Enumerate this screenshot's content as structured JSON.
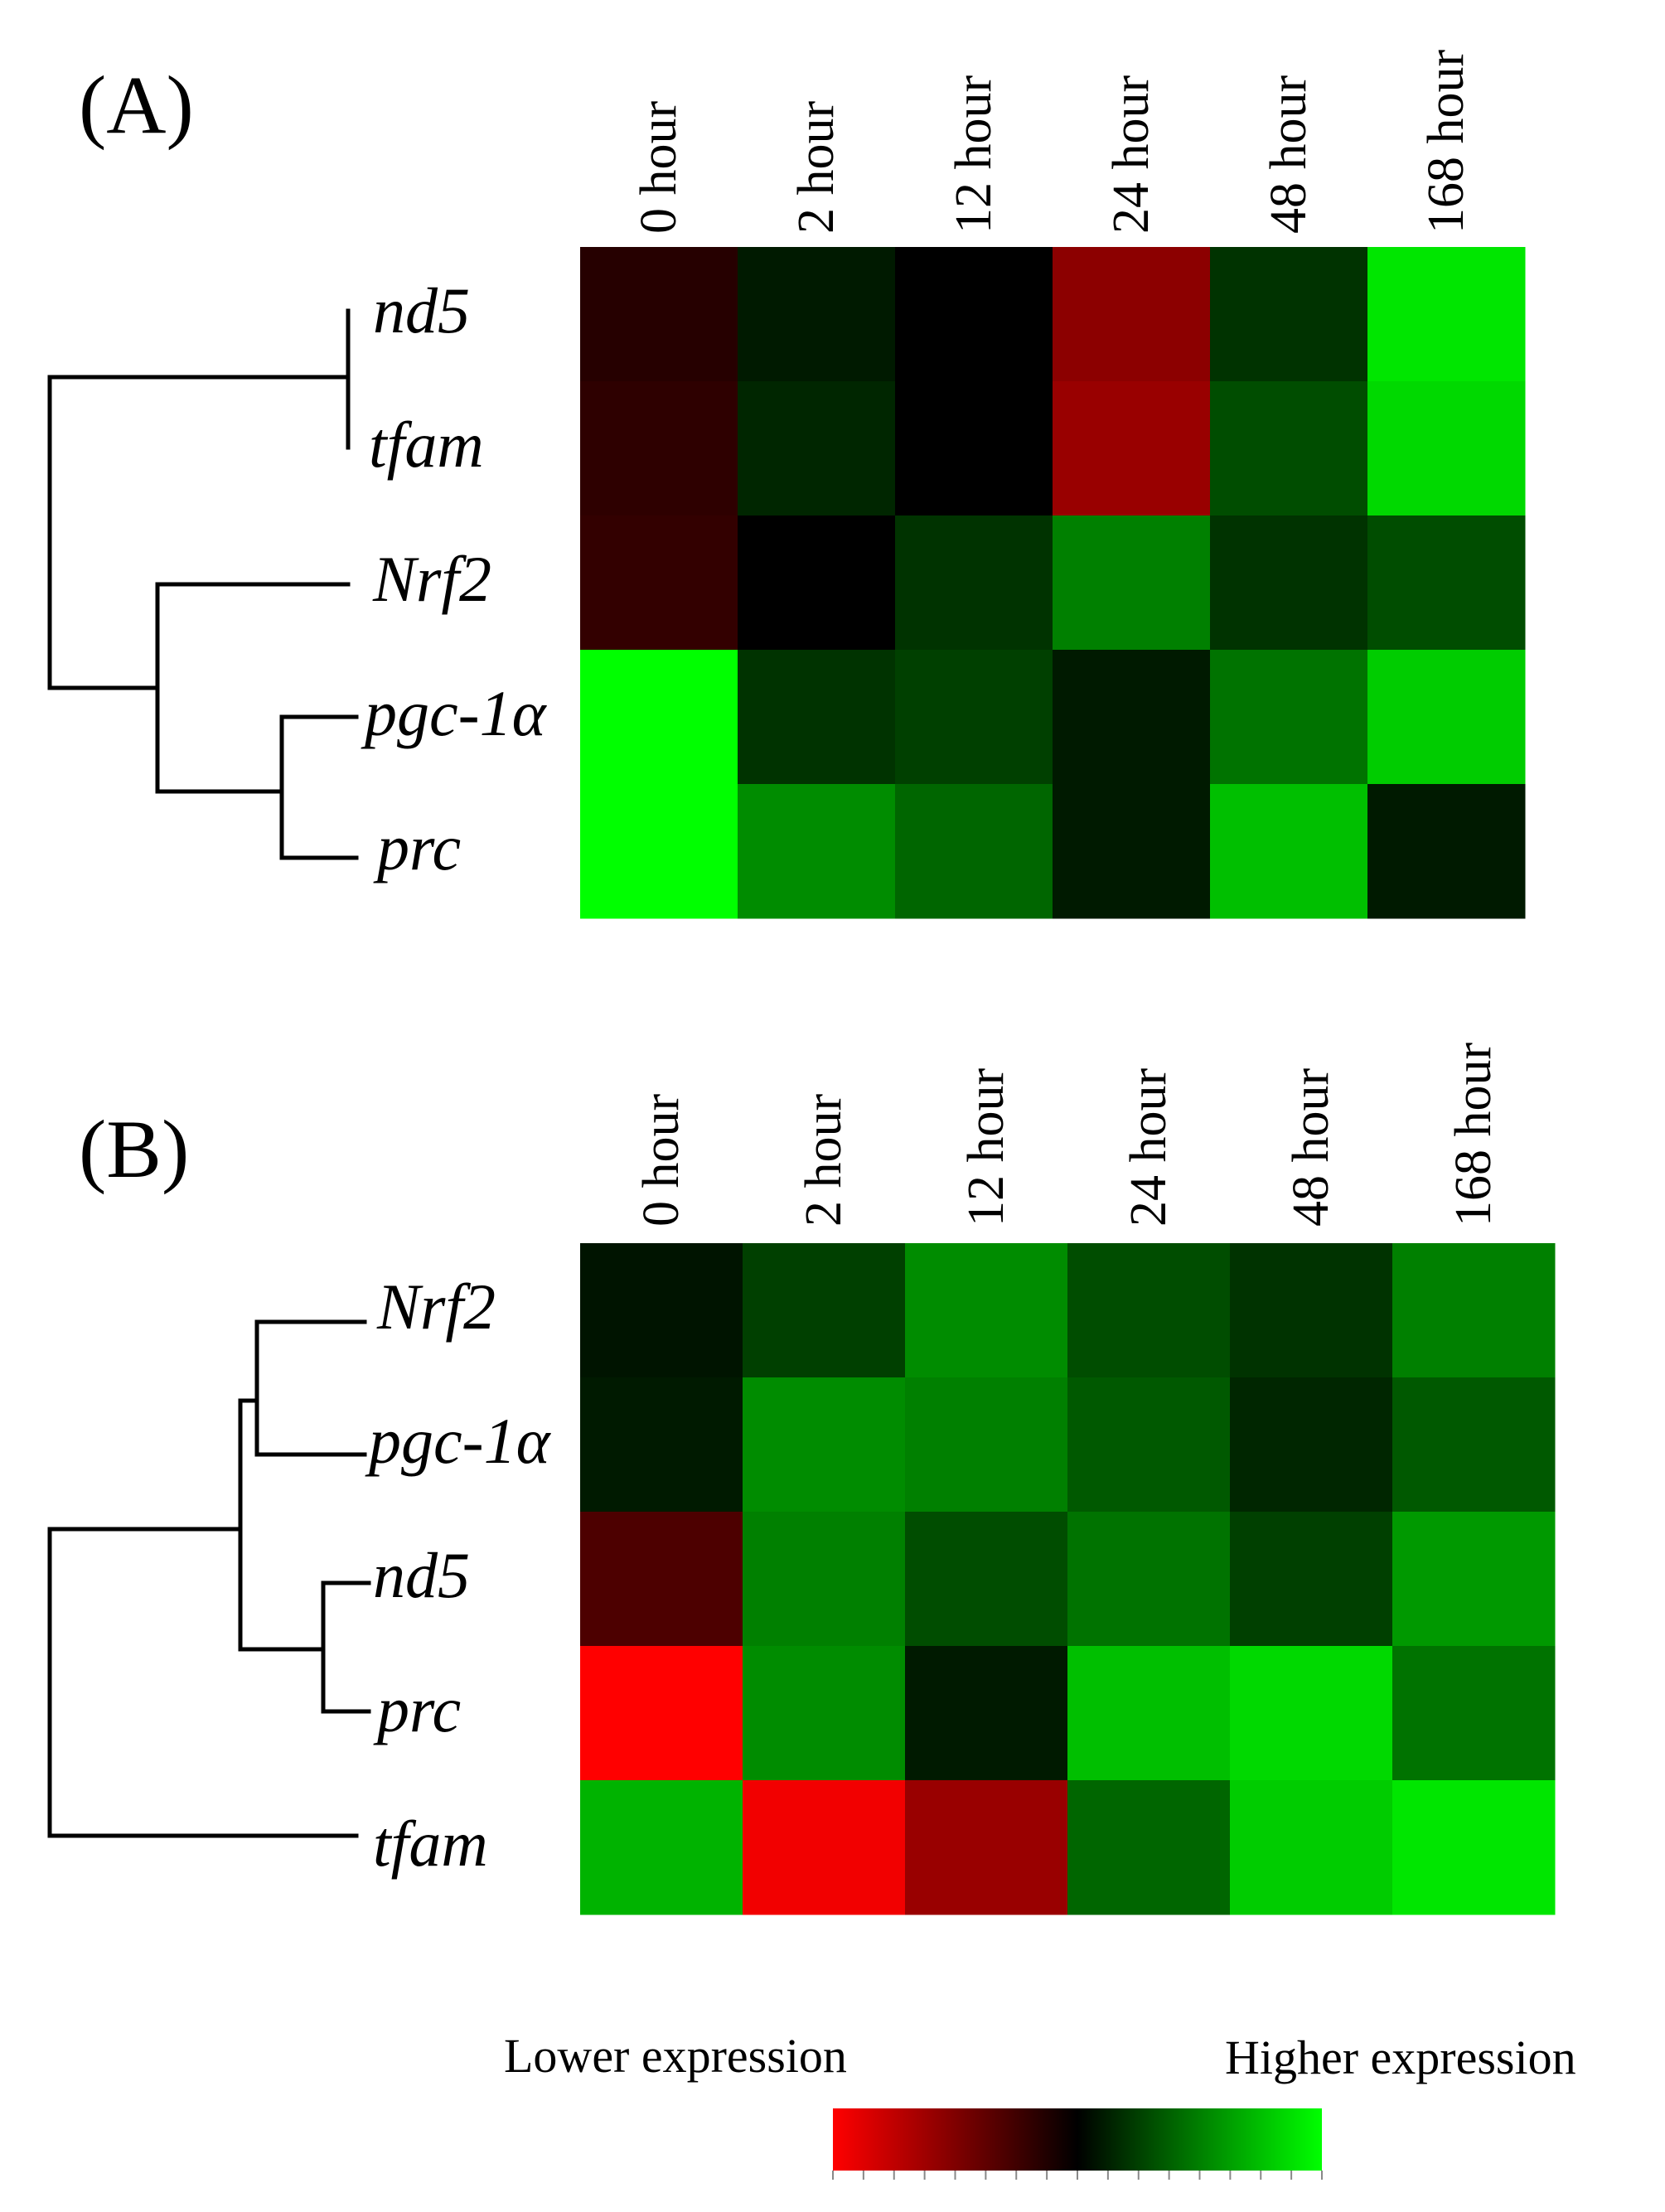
{
  "colors": {
    "low": "#ff0000",
    "mid": "#000000",
    "high": "#00ff00"
  },
  "chart_data": [
    {
      "type": "heatmap",
      "panel": "(A)",
      "columns": [
        "0 hour",
        "2 hour",
        "12 hour",
        "24 hour",
        "48 hour",
        "168 hour"
      ],
      "rows": [
        "nd5",
        "tfam",
        "Nrf2",
        "pgc-1α",
        "prc"
      ],
      "values": [
        [
          -0.15,
          0.1,
          0.0,
          -0.55,
          0.2,
          0.9
        ],
        [
          -0.18,
          0.15,
          0.0,
          -0.6,
          0.3,
          0.85
        ],
        [
          -0.2,
          0.0,
          0.2,
          0.5,
          0.2,
          0.3
        ],
        [
          1.0,
          0.2,
          0.25,
          0.1,
          0.45,
          0.8
        ],
        [
          1.0,
          0.55,
          0.4,
          0.1,
          0.75,
          0.1
        ]
      ],
      "value_sign_note": "negative = lower (red), positive = higher (green)",
      "dendrogram": "((nd5,tfam),(Nrf2,(pgc-1α,prc)))"
    },
    {
      "type": "heatmap",
      "panel": "(B)",
      "columns": [
        "0 hour",
        "2 hour",
        "12 hour",
        "24 hour",
        "48 hour",
        "168 hour"
      ],
      "rows": [
        "Nrf2",
        "pgc-1α",
        "nd5",
        "prc",
        "tfam"
      ],
      "values": [
        [
          0.08,
          0.25,
          0.55,
          0.3,
          0.2,
          0.5
        ],
        [
          0.1,
          0.55,
          0.5,
          0.35,
          0.15,
          0.35
        ],
        [
          -0.3,
          0.5,
          0.3,
          0.45,
          0.25,
          0.6
        ],
        [
          -1.0,
          0.55,
          0.1,
          0.75,
          0.85,
          0.45
        ],
        [
          0.7,
          -0.95,
          -0.6,
          0.4,
          0.8,
          0.9
        ]
      ],
      "dendrogram": "(((Nrf2,pgc-1α),(nd5,prc)),tfam)"
    }
  ],
  "legend": {
    "low_label": "Lower expression",
    "high_label": "Higher expression",
    "range": [
      -1,
      1
    ]
  }
}
